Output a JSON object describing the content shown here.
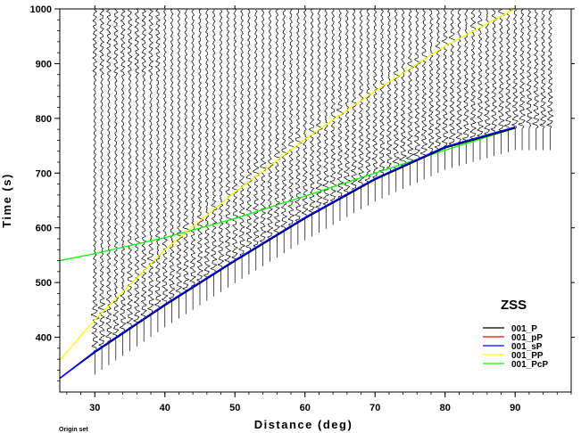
{
  "chart_data": {
    "type": "line",
    "title": "",
    "xlabel": "Distance (deg)",
    "ylabel": "Time (s)",
    "xlim": [
      25,
      98
    ],
    "ylim": [
      300,
      1000
    ],
    "x_ticks": [
      30,
      40,
      50,
      60,
      70,
      80,
      90
    ],
    "y_ticks": [
      400,
      500,
      600,
      700,
      800,
      900,
      1000
    ],
    "legend": {
      "title": "ZSS",
      "placement": "bottom-right",
      "entries": [
        {
          "label": "001_P",
          "color": "#000000"
        },
        {
          "label": "001_pP",
          "color": "#ff0000"
        },
        {
          "label": "001_sP",
          "color": "#0000ff"
        },
        {
          "label": "001_PP",
          "color": "#ffff00"
        },
        {
          "label": "001_PcP",
          "color": "#00ff00"
        }
      ]
    },
    "series": [
      {
        "name": "001_P",
        "color": "#000000",
        "x": [
          25,
          30,
          40,
          50,
          60,
          70,
          80,
          90
        ],
        "y": [
          325,
          372,
          458,
          539,
          617,
          688,
          746,
          782
        ]
      },
      {
        "name": "001_pP",
        "color": "#ff0000",
        "x": [
          25,
          30,
          40,
          50,
          60,
          70,
          80,
          90
        ],
        "y": [
          325,
          373,
          459,
          540,
          618,
          689,
          747,
          783
        ]
      },
      {
        "name": "001_sP",
        "color": "#0000ff",
        "x": [
          25,
          30,
          40,
          50,
          60,
          70,
          80,
          90
        ],
        "y": [
          325,
          374,
          460,
          541,
          619,
          690,
          748,
          784
        ]
      },
      {
        "name": "001_PP",
        "color": "#ffff00",
        "x": [
          25,
          30,
          40,
          50,
          60,
          70,
          80,
          90
        ],
        "y": [
          358,
          432,
          560,
          665,
          762,
          850,
          932,
          1000
        ]
      },
      {
        "name": "001_PcP",
        "color": "#00ff00",
        "x": [
          25,
          30,
          40,
          50,
          60,
          70,
          80,
          90
        ],
        "y": [
          540,
          553,
          582,
          617,
          658,
          700,
          742,
          782
        ]
      }
    ],
    "traces": {
      "distances": [
        30,
        31,
        32,
        33,
        34,
        35,
        36,
        37,
        38,
        39,
        40,
        41,
        42,
        43,
        44,
        45,
        46,
        47,
        48,
        49,
        50,
        51,
        52,
        53,
        54,
        55,
        56,
        57,
        58,
        59,
        60,
        61,
        62,
        63,
        64,
        65,
        66,
        67,
        68,
        69,
        70,
        71,
        72,
        73,
        74,
        75,
        76,
        77,
        78,
        79,
        80,
        81,
        82,
        83,
        84,
        85,
        86,
        87,
        88,
        89,
        90,
        91,
        92,
        93,
        94,
        95
      ],
      "end_time": 1000
    }
  },
  "footer": {
    "origin_text": "Origin set"
  }
}
